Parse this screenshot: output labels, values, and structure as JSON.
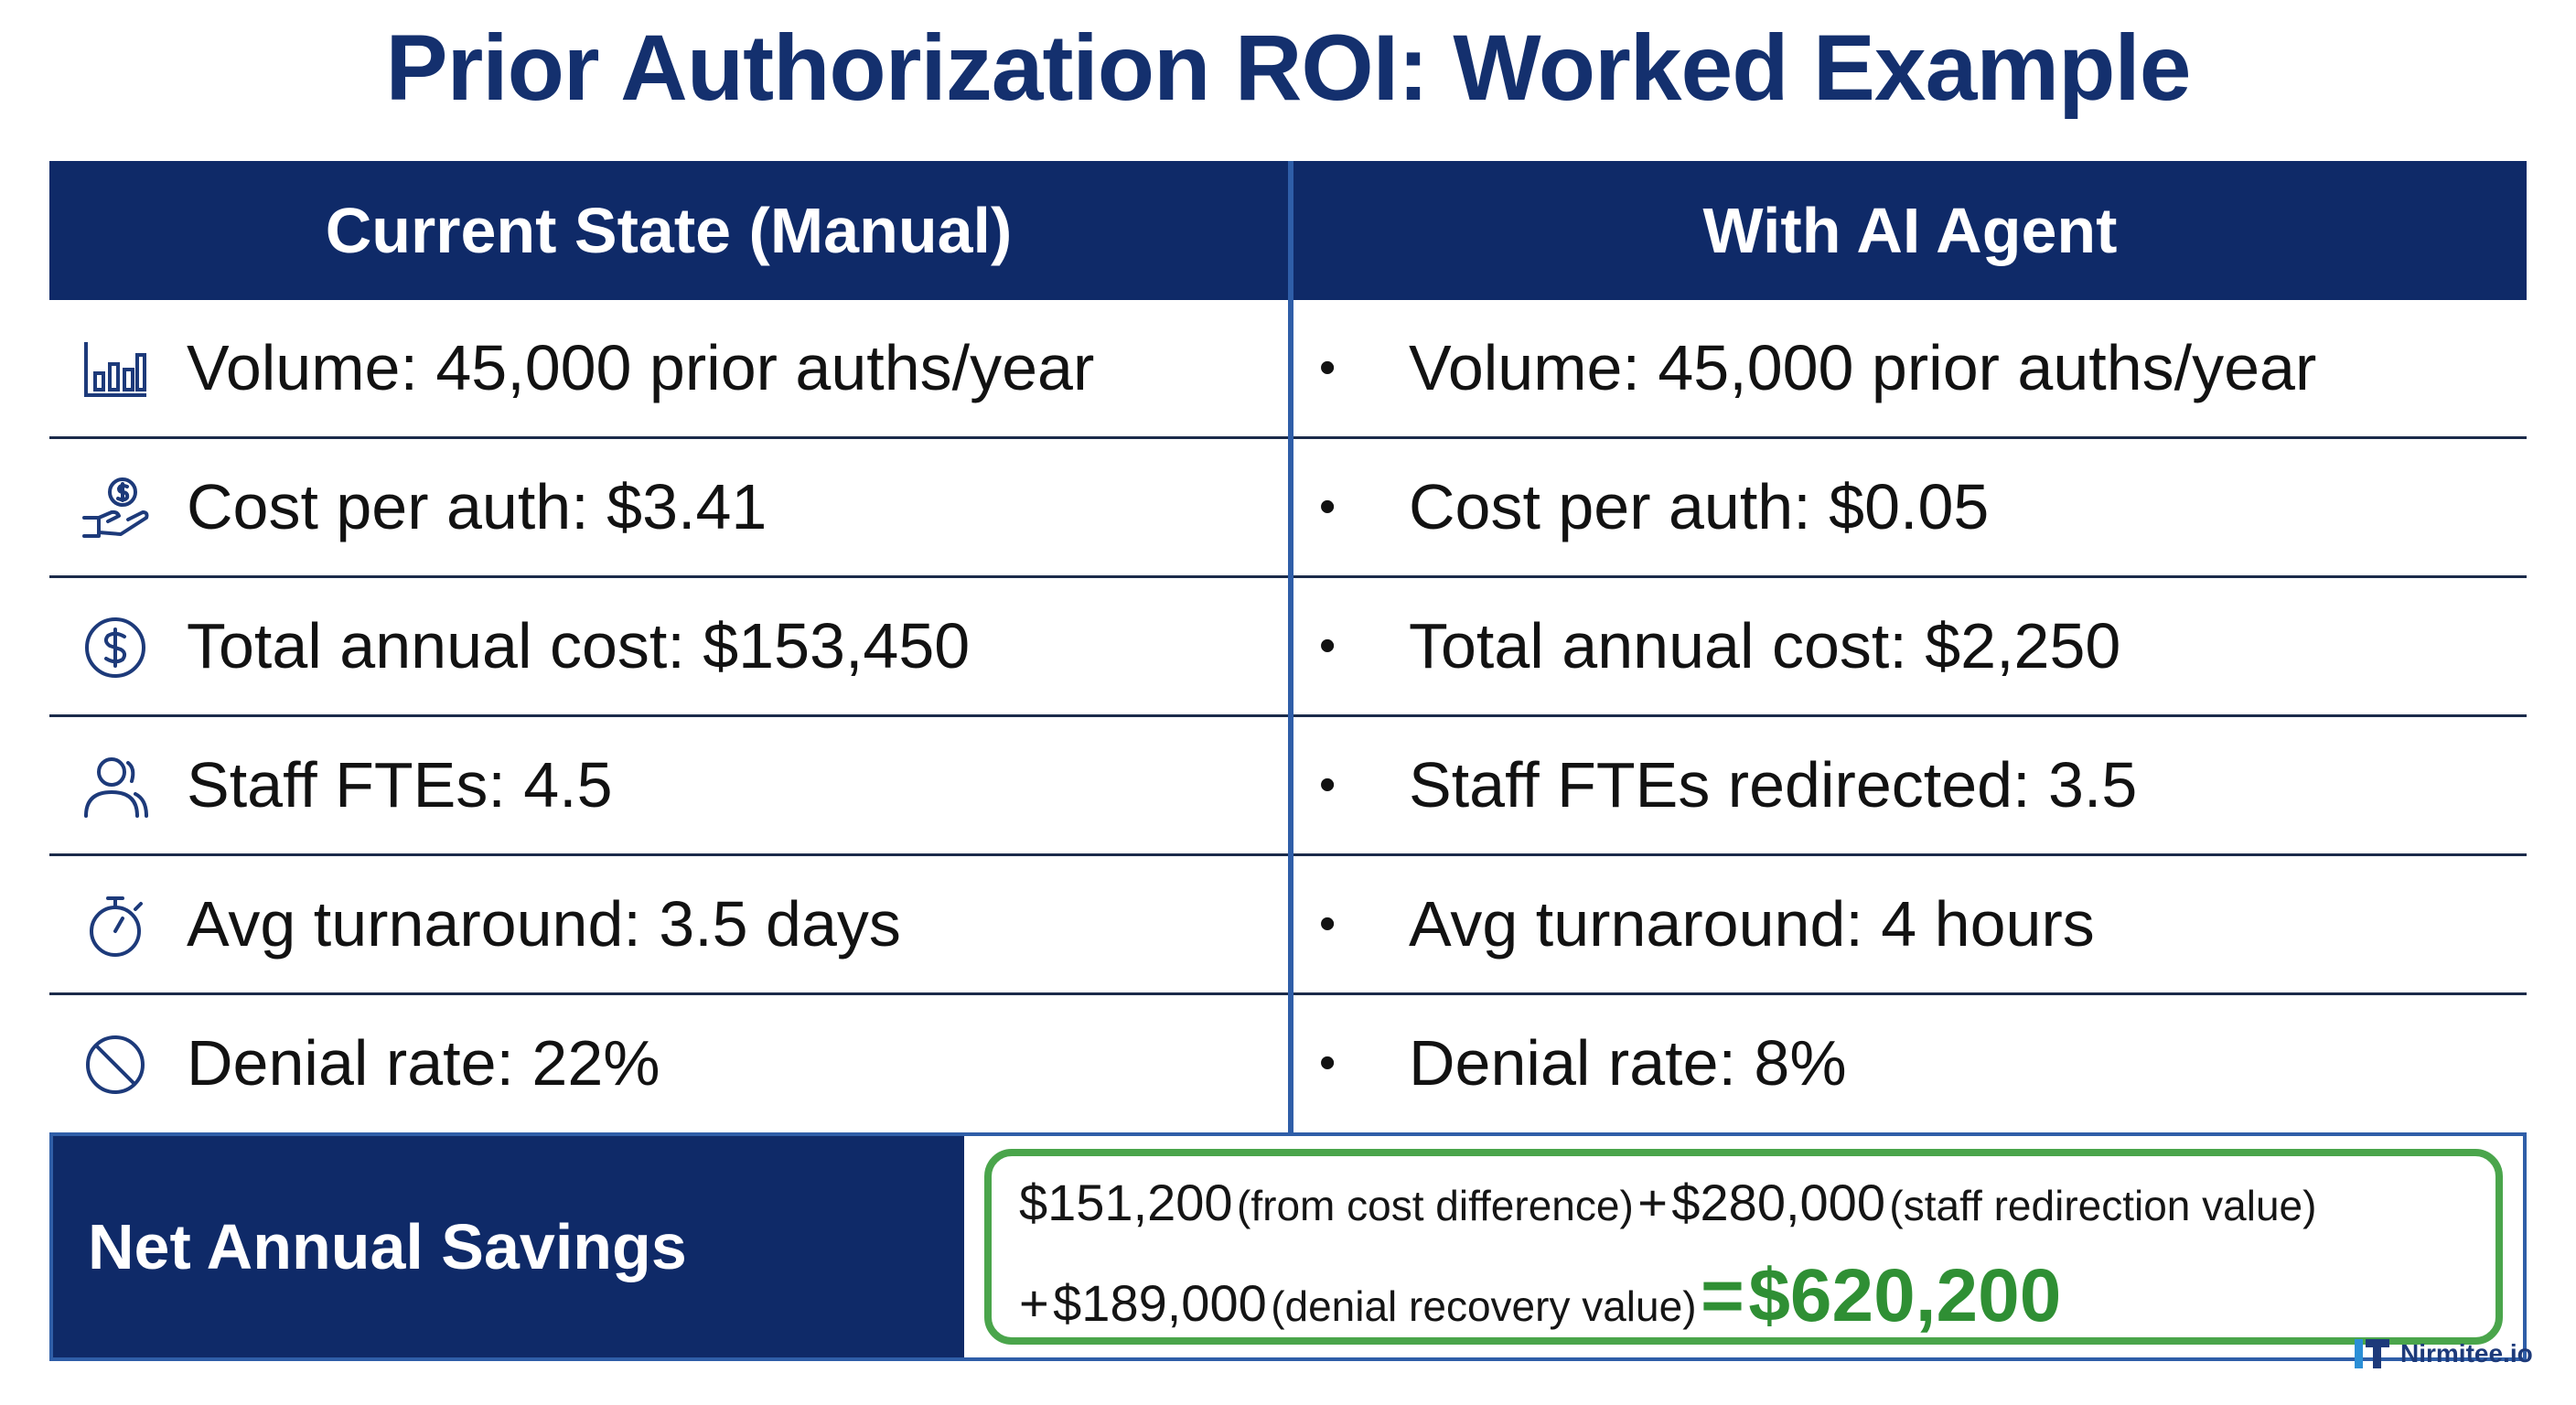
{
  "title": "Prior Authorization ROI: Worked Example",
  "columns": {
    "current": "Current State (Manual)",
    "ai": "With AI Agent"
  },
  "rows": [
    {
      "icon": "bar-chart-icon",
      "current": "Volume: 45,000 prior auths/year",
      "ai": "Volume: 45,000 prior auths/year"
    },
    {
      "icon": "hand-coin-icon",
      "current": "Cost per auth: $3.41",
      "ai": "Cost per auth: $0.05"
    },
    {
      "icon": "dollar-circle-icon",
      "current": "Total annual cost: $153,450",
      "ai": "Total annual cost: $2,250"
    },
    {
      "icon": "person-icon",
      "current": "Staff FTEs: 4.5",
      "ai": "Staff FTEs redirected: 3.5"
    },
    {
      "icon": "stopwatch-icon",
      "current": "Avg turnaround: 3.5 days",
      "ai": "Avg turnaround: 4 hours"
    },
    {
      "icon": "prohibited-icon",
      "current": "Denial rate: 22%",
      "ai": "Denial rate: 8%"
    }
  ],
  "bullet": "•",
  "savings": {
    "label": "Net Annual Savings",
    "part1_value": "$151,200",
    "part1_note": "(from cost difference)",
    "plus": "+",
    "part2_value": "$280,000",
    "part2_note": "(staff redirection value)",
    "part3_value": "$189,000",
    "part3_note": "(denial recovery value)",
    "equals": "=",
    "total": "$620,200"
  },
  "brand": "Nirmitee.io",
  "colors": {
    "navy": "#0f2a68",
    "title": "#14306e",
    "green": "#4aa54b",
    "total_green": "#2f8f34",
    "divider_blue": "#2f5ea8"
  }
}
